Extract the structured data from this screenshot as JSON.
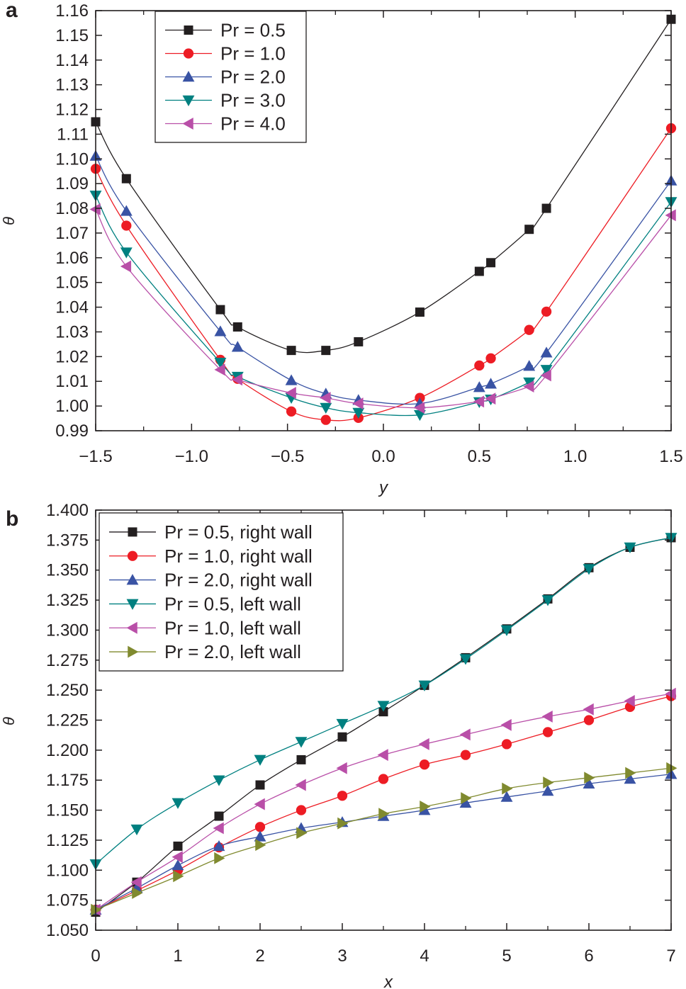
{
  "chart_data": [
    {
      "panel_label": "a",
      "type": "line",
      "xlabel": "y",
      "ylabel": "θ",
      "xlim": [
        -1.5,
        1.5
      ],
      "ylim": [
        0.99,
        1.16
      ],
      "xticks": [
        "−1.5",
        "−1.0",
        "−0.5",
        "0.0",
        "0.5",
        "1.0",
        "1.5"
      ],
      "xtick_values": [
        -1.5,
        -1.0,
        -0.5,
        0.0,
        0.5,
        1.0,
        1.5
      ],
      "yticks": [
        "0.99",
        "1.00",
        "1.01",
        "1.02",
        "1.03",
        "1.04",
        "1.05",
        "1.06",
        "1.07",
        "1.08",
        "1.09",
        "1.10",
        "1.11",
        "1.12",
        "1.13",
        "1.14",
        "1.15",
        "1.16"
      ],
      "grid": false,
      "legend_position": "top-left",
      "x": [
        -1.5,
        -1.34,
        -0.85,
        -0.76,
        -0.48,
        -0.3,
        -0.13,
        0.19,
        0.5,
        0.56,
        0.76,
        0.85,
        1.5
      ],
      "series": [
        {
          "name": "Pr = 0.5",
          "color": "#231f20",
          "marker": "square",
          "values": [
            1.115,
            1.092,
            1.039,
            1.032,
            1.0225,
            1.0225,
            1.026,
            1.038,
            1.0545,
            1.058,
            1.0715,
            1.08,
            1.1565
          ]
        },
        {
          "name": "Pr = 1.0",
          "color": "#ed1c24",
          "marker": "circle",
          "values": [
            1.096,
            1.073,
            1.0187,
            1.011,
            0.9978,
            0.9944,
            0.9952,
            1.0033,
            1.0164,
            1.0193,
            1.0308,
            1.0382,
            1.1124
          ]
        },
        {
          "name": "Pr = 2.0",
          "color": "#3953a4",
          "marker": "triangle-up",
          "values": [
            1.1012,
            1.0789,
            1.0302,
            1.0239,
            1.0104,
            1.005,
            1.0024,
            1.001,
            1.0076,
            1.009,
            1.0162,
            1.0216,
            1.0912
          ]
        },
        {
          "name": "Pr = 3.0",
          "color": "#008080",
          "marker": "triangle-down",
          "values": [
            1.0852,
            1.0622,
            1.0176,
            1.0119,
            1.0033,
            0.9993,
            0.9973,
            0.9964,
            1.0016,
            1.0027,
            1.0096,
            1.0147,
            1.0826
          ]
        },
        {
          "name": "Pr = 4.0",
          "color": "#b94fa8",
          "marker": "triangle-left",
          "values": [
            1.0796,
            1.0565,
            1.0147,
            1.0107,
            1.0053,
            1.0033,
            1.001,
            0.9993,
            1.0018,
            1.003,
            1.0079,
            1.0124,
            1.0772
          ]
        }
      ]
    },
    {
      "panel_label": "b",
      "type": "line",
      "xlabel": "x",
      "ylabel": "θ",
      "xlim": [
        0,
        7
      ],
      "ylim": [
        1.05,
        1.4
      ],
      "xticks": [
        "0",
        "1",
        "2",
        "3",
        "4",
        "5",
        "6",
        "7"
      ],
      "xtick_values": [
        0,
        1,
        2,
        3,
        4,
        5,
        6,
        7
      ],
      "yticks": [
        "1.050",
        "1.075",
        "1.100",
        "1.125",
        "1.150",
        "1.175",
        "1.200",
        "1.225",
        "1.250",
        "1.275",
        "1.300",
        "1.325",
        "1.350",
        "1.375",
        "1.400"
      ],
      "grid": false,
      "legend_position": "top-left",
      "x": [
        0,
        0.5,
        1,
        1.5,
        2,
        2.5,
        3,
        3.5,
        4,
        4.5,
        5,
        5.5,
        6,
        6.5,
        7
      ],
      "series": [
        {
          "name": "Pr = 0.5, right wall",
          "color": "#231f20",
          "marker": "square",
          "values": [
            1.065,
            1.09,
            1.12,
            1.145,
            1.171,
            1.192,
            1.211,
            1.232,
            1.254,
            1.277,
            1.301,
            1.326,
            1.352,
            1.369,
            1.377
          ]
        },
        {
          "name": "Pr = 1.0, right wall",
          "color": "#ed1c24",
          "marker": "circle",
          "values": [
            1.067,
            1.083,
            1.1,
            1.119,
            1.136,
            1.15,
            1.162,
            1.176,
            1.188,
            1.196,
            1.205,
            1.215,
            1.225,
            1.236,
            1.245
          ]
        },
        {
          "name": "Pr = 2.0, right wall",
          "color": "#3953a4",
          "marker": "triangle-up",
          "values": [
            1.067,
            1.085,
            1.104,
            1.12,
            1.128,
            1.135,
            1.14,
            1.145,
            1.15,
            1.156,
            1.161,
            1.166,
            1.172,
            1.176,
            1.18
          ]
        },
        {
          "name": "Pr = 0.5, left wall",
          "color": "#008080",
          "marker": "triangle-down",
          "values": [
            1.105,
            1.134,
            1.156,
            1.175,
            1.192,
            1.207,
            1.222,
            1.237,
            1.254,
            1.276,
            1.3,
            1.325,
            1.351,
            1.369,
            1.377
          ]
        },
        {
          "name": "Pr = 1.0, left wall",
          "color": "#b94fa8",
          "marker": "triangle-left",
          "values": [
            1.067,
            1.09,
            1.111,
            1.135,
            1.155,
            1.171,
            1.185,
            1.196,
            1.205,
            1.213,
            1.221,
            1.228,
            1.234,
            1.241,
            1.247
          ]
        },
        {
          "name": "Pr = 2.0, left wall",
          "color": "#808a2f",
          "marker": "triangle-right",
          "values": [
            1.067,
            1.081,
            1.095,
            1.11,
            1.121,
            1.131,
            1.139,
            1.147,
            1.153,
            1.16,
            1.168,
            1.173,
            1.177,
            1.181,
            1.185
          ]
        }
      ]
    }
  ]
}
